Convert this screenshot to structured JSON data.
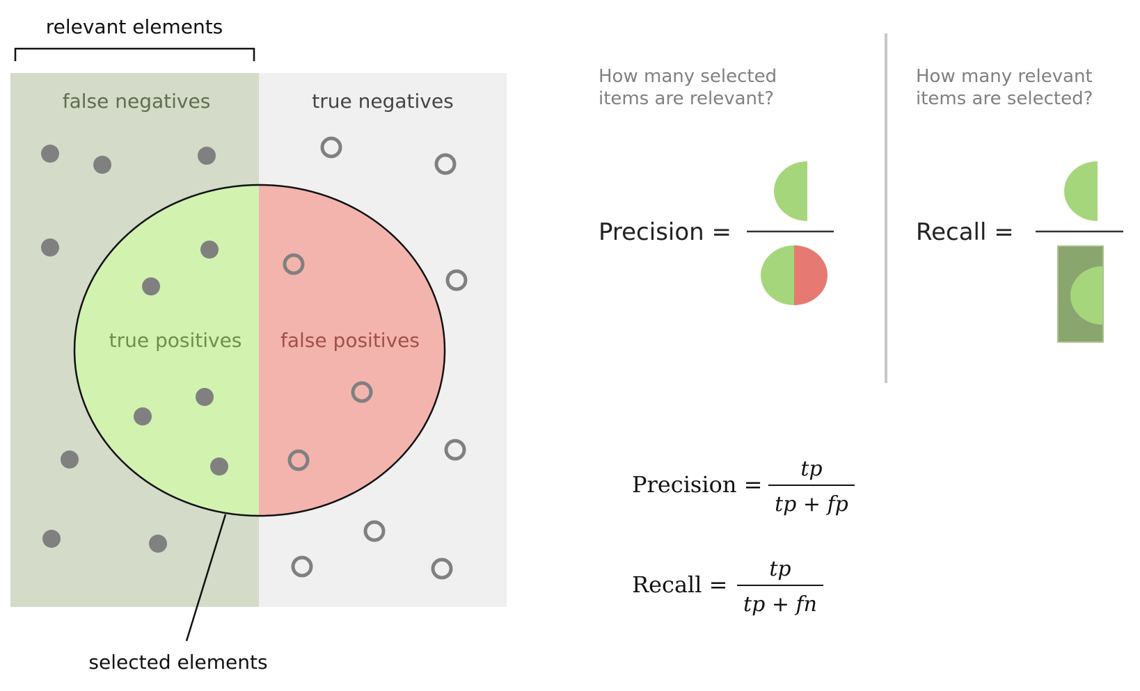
{
  "diagram": {
    "labels": {
      "relevant_elements": "relevant elements",
      "false_negatives": "false negatives",
      "true_negatives": "true negatives",
      "true_positives": "true positives",
      "false_positives": "false positives",
      "selected_elements": "selected elements"
    },
    "colors": {
      "relevant_region": "#d4dbc8",
      "irrelevant_region": "#f0f0f0",
      "true_positive_fill": "#d2f2b0",
      "false_positive_fill": "#f4b4ae",
      "dot": "#808080",
      "fn_label": "#5f6d50",
      "tp_label": "#6c8f4d",
      "fp_label": "#a05048",
      "tn_label": "#444444",
      "outline": "#111111"
    }
  },
  "precision_panel": {
    "question_line1": "How many selected",
    "question_line2": "items are relevant?",
    "label": "Precision =",
    "colors": {
      "green": "#a6d67c",
      "red": "#e67a72"
    }
  },
  "recall_panel": {
    "question_line1": "How many relevant",
    "question_line2": "items are selected?",
    "label": "Recall =",
    "colors": {
      "green": "#a6d67c",
      "box": "#8aa56e"
    }
  },
  "formulas": {
    "precision": {
      "label": "Precision =",
      "numerator": "tp",
      "denominator": "tp + fp"
    },
    "recall": {
      "label": "Recall =",
      "numerator": "tp",
      "denominator": "tp + fn"
    }
  }
}
